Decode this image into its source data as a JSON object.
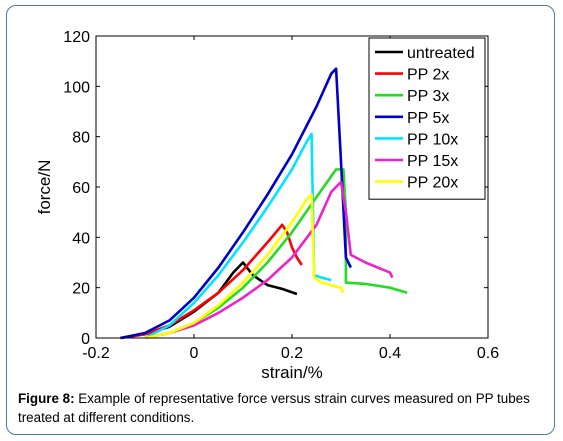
{
  "chart_data": {
    "type": "line",
    "xlabel": "strain/%",
    "ylabel": "force/N",
    "xlim": [
      -0.2,
      0.6
    ],
    "ylim": [
      0,
      120
    ],
    "xticks": [
      -0.2,
      0,
      0.2,
      0.4,
      0.6
    ],
    "xtick_labels": [
      "-0.2",
      "0",
      "0.2",
      "0.4",
      "0.6"
    ],
    "yticks": [
      0,
      20,
      40,
      60,
      80,
      100,
      120
    ],
    "ytick_labels": [
      "0",
      "20",
      "40",
      "60",
      "80",
      "100",
      "120"
    ],
    "grid": false,
    "legend_position": "top-right",
    "series": [
      {
        "name": "untreated",
        "color": "#000000",
        "x": [
          -0.15,
          -0.1,
          -0.05,
          0.0,
          0.05,
          0.08,
          0.1,
          0.12,
          0.15,
          0.18,
          0.21
        ],
        "y": [
          0,
          1.5,
          4.5,
          10.5,
          18,
          26,
          30,
          25,
          21,
          19.5,
          17.5
        ]
      },
      {
        "name": "PP 2x",
        "color": "#ff0000",
        "x": [
          -0.15,
          -0.1,
          -0.05,
          0.0,
          0.05,
          0.1,
          0.15,
          0.18,
          0.19,
          0.2,
          0.21,
          0.22
        ],
        "y": [
          0,
          1.5,
          5,
          11,
          18,
          27,
          38,
          45,
          42,
          36,
          32,
          29
        ]
      },
      {
        "name": "PP 3x",
        "color": "#22dd22",
        "x": [
          -0.1,
          -0.05,
          0.0,
          0.05,
          0.1,
          0.15,
          0.2,
          0.25,
          0.29,
          0.305,
          0.31,
          0.31,
          0.35,
          0.4,
          0.435
        ],
        "y": [
          0,
          2,
          6,
          12,
          20,
          30,
          42,
          56,
          67,
          67,
          50,
          22,
          21.5,
          20,
          18
        ]
      },
      {
        "name": "PP 5x",
        "color": "#0000cc",
        "x": [
          -0.15,
          -0.1,
          -0.05,
          0.0,
          0.05,
          0.1,
          0.15,
          0.2,
          0.25,
          0.28,
          0.29,
          0.3,
          0.31,
          0.32
        ],
        "y": [
          0,
          2,
          7,
          16,
          28,
          42,
          57,
          73,
          92,
          105,
          107,
          70,
          32,
          28
        ]
      },
      {
        "name": "PP 10x",
        "color": "#00e5ff",
        "x": [
          -0.1,
          -0.05,
          0.0,
          0.05,
          0.1,
          0.15,
          0.2,
          0.23,
          0.24,
          0.245,
          0.26,
          0.28
        ],
        "y": [
          0,
          5,
          14,
          25,
          38,
          52,
          67,
          78,
          81,
          25,
          24,
          23
        ]
      },
      {
        "name": "PP 15x",
        "color": "#ee22cc",
        "x": [
          -0.1,
          -0.05,
          0.0,
          0.05,
          0.1,
          0.15,
          0.2,
          0.25,
          0.28,
          0.3,
          0.31,
          0.32,
          0.35,
          0.4,
          0.405
        ],
        "y": [
          0,
          2,
          5,
          10,
          16,
          23,
          32,
          45,
          58,
          62,
          50,
          33,
          30,
          26,
          24
        ]
      },
      {
        "name": "PP 20x",
        "color": "#ffff00",
        "x": [
          -0.1,
          -0.05,
          0.0,
          0.05,
          0.1,
          0.15,
          0.2,
          0.23,
          0.24,
          0.245,
          0.26,
          0.3,
          0.305
        ],
        "y": [
          0,
          2,
          6,
          13,
          22,
          33,
          46,
          55,
          57,
          24,
          22,
          20,
          18
        ]
      }
    ]
  },
  "caption": {
    "label": "Figure 8:",
    "text": " Example of representative force versus strain curves measured on PP tubes treated at different conditions."
  }
}
